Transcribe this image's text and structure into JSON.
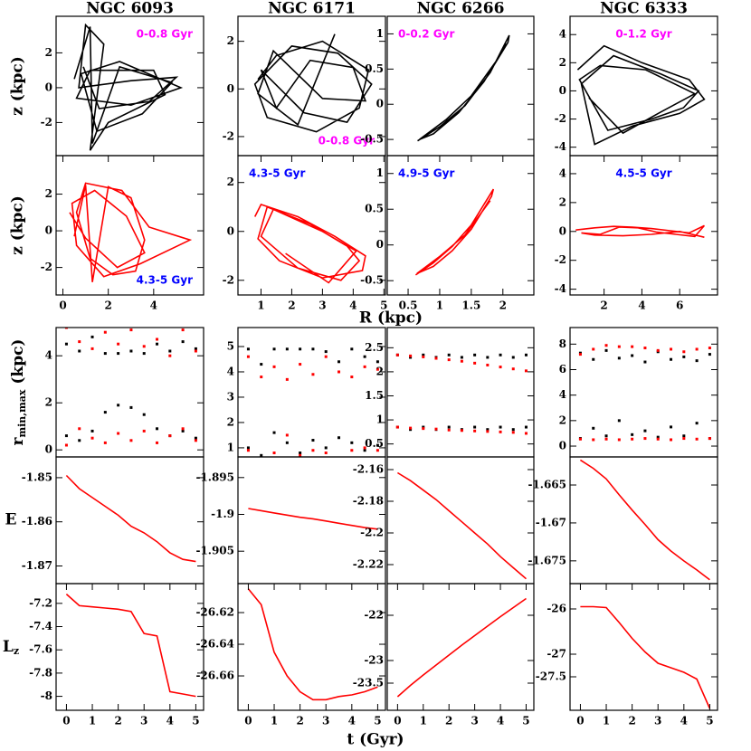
{
  "chart_data": [
    {
      "type": "line",
      "title": "NGC 6093",
      "x": [
        0.5,
        1.2,
        1.3,
        2.5,
        4.8,
        3.5,
        1.5,
        0.8,
        2.5,
        5.2,
        3.0,
        0.6,
        1.2,
        4.0,
        4.5,
        2.0,
        1.2,
        1.8,
        1.0,
        0.7,
        3.0,
        5.0,
        3.8,
        1.6,
        0.9
      ],
      "values": [
        0.5,
        3.5,
        -3.2,
        1.2,
        0.3,
        -1.5,
        -2.5,
        0.8,
        1.5,
        0.0,
        -1.0,
        -0.6,
        1.0,
        1.0,
        -0.4,
        -2.0,
        -3.6,
        2.5,
        3.6,
        0.0,
        0.4,
        0.6,
        -0.8,
        -1.2,
        1.2
      ],
      "color": "#000000",
      "xlim": [
        -0.3,
        6.2
      ],
      "ylim": [
        -3.9,
        4.1
      ],
      "yticks": [
        -2,
        0,
        2
      ],
      "annotation": {
        "text": "0-0.8 Gyr",
        "color": "#ff00ff",
        "loc": "upper right"
      }
    },
    {
      "type": "line",
      "title": "NGC 6171",
      "x": [
        0.9,
        1.5,
        3.0,
        4.5,
        4.2,
        2.8,
        1.2,
        0.8,
        2.0,
        3.5,
        4.6,
        3.8,
        2.4,
        1.0,
        1.5,
        2.6,
        4.0,
        4.4,
        3.0,
        1.4,
        0.9,
        2.2,
        3.4
      ],
      "values": [
        0.4,
        1.4,
        2.0,
        0.8,
        -0.8,
        -1.8,
        -1.2,
        0.2,
        1.8,
        1.5,
        0.2,
        -1.4,
        -1.0,
        0.8,
        -0.8,
        1.2,
        0.9,
        -0.5,
        -0.4,
        1.6,
        -0.2,
        -1.5,
        2.3
      ],
      "color": "#000000",
      "xlim": [
        0.25,
        5.05
      ],
      "ylim": [
        -2.8,
        3.05
      ],
      "yticks": [
        -2,
        0,
        2
      ],
      "annotation": {
        "text": "0-0.8 Gyr",
        "color": "#ff00ff",
        "loc": "lower right"
      }
    },
    {
      "type": "line",
      "title": "NGC 6266",
      "x": [
        0.65,
        1.0,
        1.4,
        1.8,
        2.1,
        2.08,
        1.7,
        1.3,
        0.9,
        0.68,
        1.1,
        1.5,
        1.9,
        2.05
      ],
      "values": [
        -0.52,
        -0.32,
        -0.02,
        0.45,
        0.98,
        0.88,
        0.32,
        -0.12,
        -0.42,
        -0.5,
        -0.22,
        0.12,
        0.62,
        0.86
      ],
      "color": "#000000",
      "xlim": [
        0.17,
        2.49
      ],
      "ylim": [
        -0.73,
        1.25
      ],
      "yticks": [
        -0.5,
        0,
        0.5,
        1
      ],
      "annotation": {
        "text": "0-0.2 Gyr",
        "color": "#ff00ff",
        "loc": "upper left"
      }
    },
    {
      "type": "line",
      "title": "NGC 6333",
      "x": [
        0.6,
        2.0,
        4.0,
        6.5,
        7.3,
        6.0,
        3.5,
        1.5,
        0.8,
        2.5,
        5.0,
        7.0,
        6.2,
        4.5,
        2.2,
        0.7,
        1.8,
        4.2,
        6.8,
        5.0,
        3.0,
        1.2
      ],
      "values": [
        1.5,
        3.2,
        2.0,
        0.8,
        -0.6,
        -1.6,
        -2.5,
        -3.8,
        0.5,
        2.5,
        1.2,
        0.0,
        -1.2,
        -2.0,
        -2.8,
        0.8,
        1.8,
        1.5,
        -0.2,
        -1.5,
        -3.0,
        -0.5
      ],
      "color": "#000000",
      "xlim": [
        0.2,
        8.0
      ],
      "ylim": [
        -4.6,
        5.3
      ],
      "yticks": [
        -4,
        -2,
        0,
        2,
        4
      ],
      "annotation": {
        "text": "0-1.2 Gyr",
        "color": "#ff00ff",
        "loc": "upper center"
      }
    },
    {
      "type": "line",
      "x": [
        0.5,
        1.0,
        1.3,
        2.0,
        3.0,
        3.6,
        3.2,
        2.2,
        1.2,
        0.6,
        1.0,
        2.6,
        3.8,
        5.6,
        3.4,
        1.8,
        0.6,
        0.4,
        1.4,
        2.8,
        3.6,
        2.4,
        1.0,
        0.3
      ],
      "values": [
        -0.3,
        2.5,
        -2.8,
        2.4,
        1.8,
        -0.5,
        -2.2,
        -2.4,
        -1.5,
        1.0,
        2.6,
        2.2,
        0.2,
        -0.5,
        -1.8,
        -2.5,
        -0.8,
        1.5,
        2.2,
        0.8,
        -1.2,
        -2.0,
        -0.4,
        1.0
      ],
      "color": "#ff0000",
      "xlim": [
        -0.3,
        6.2
      ],
      "ylim": [
        -3.5,
        4.1
      ],
      "xticks": [
        0,
        2,
        4
      ],
      "yticks": [
        -2,
        0,
        2
      ],
      "annotation": {
        "text": "4.3-5 Gyr",
        "color": "#0000ff",
        "loc": "lower right"
      }
    },
    {
      "type": "line",
      "x": [
        0.8,
        1.0,
        2.2,
        3.4,
        4.4,
        4.3,
        3.0,
        1.6,
        0.9,
        1.2,
        2.6,
        3.8,
        4.2,
        3.6,
        2.2,
        1.0,
        1.4,
        3.0,
        4.1,
        3.2,
        1.8
      ],
      "values": [
        0.6,
        1.1,
        0.6,
        -0.2,
        -1.0,
        -1.6,
        -1.9,
        -1.2,
        -0.3,
        1.0,
        0.3,
        -0.6,
        -1.2,
        -2.0,
        -1.5,
        -0.2,
        0.9,
        0.0,
        -0.8,
        -2.1,
        -0.9
      ],
      "color": "#ff0000",
      "xlim": [
        0.25,
        5.05
      ],
      "ylim": [
        -2.6,
        3.1
      ],
      "xticks": [
        1,
        2,
        3,
        4,
        5
      ],
      "yticks": [
        -2,
        0,
        2
      ],
      "annotation": {
        "text": "4.3-5 Gyr",
        "color": "#0000ff",
        "loc": "upper left"
      }
    },
    {
      "type": "line",
      "x": [
        0.62,
        0.9,
        1.2,
        1.5,
        1.85,
        1.82,
        1.5,
        1.2,
        0.9,
        0.64,
        1.0,
        1.4,
        1.8
      ],
      "values": [
        -0.42,
        -0.25,
        -0.02,
        0.28,
        0.78,
        0.68,
        0.22,
        -0.08,
        -0.3,
        -0.4,
        -0.16,
        0.14,
        0.62
      ],
      "color": "#ff0000",
      "xlim": [
        0.17,
        2.49
      ],
      "ylim": [
        -0.7,
        1.25
      ],
      "xticks": [
        0.5,
        1,
        1.5,
        2
      ],
      "yticks": [
        -0.5,
        0,
        0.5,
        1
      ],
      "annotation": {
        "text": "4.9-5 Gyr",
        "color": "#0000ff",
        "loc": "upper left"
      }
    },
    {
      "type": "line",
      "x": [
        0.5,
        1.5,
        2.5,
        3.5,
        4.5,
        5.5,
        6.5,
        7.3,
        6.8,
        5.8,
        4.8,
        3.8,
        2.8,
        1.8,
        0.8,
        1.5,
        3.0,
        4.5,
        6.0,
        7.3
      ],
      "values": [
        0.1,
        0.25,
        0.35,
        0.3,
        0.2,
        0.05,
        -0.1,
        0.4,
        -0.35,
        -0.2,
        -0.05,
        0.25,
        0.3,
        -0.2,
        -0.1,
        -0.25,
        -0.3,
        -0.2,
        0.0,
        -0.4
      ],
      "color": "#ff0000",
      "xlim": [
        0.2,
        8.0
      ],
      "ylim": [
        -4.4,
        5.25
      ],
      "xticks": [
        2,
        4,
        6
      ],
      "yticks": [
        -4,
        -2,
        0,
        2,
        4
      ],
      "annotation": {
        "text": "4.5-5 Gyr",
        "color": "#0000ff",
        "loc": "upper center"
      }
    },
    {
      "type": "scatter",
      "x": [
        0,
        0.5,
        1,
        1.5,
        2,
        2.5,
        3,
        3.5,
        4,
        4.5,
        5
      ],
      "xlim": [
        -0.4,
        5.3
      ],
      "ylim": [
        -0.3,
        5.2
      ],
      "yticks": [
        0,
        2,
        4
      ],
      "series": [
        {
          "color": "#000000",
          "values": [
            4.5,
            4.2,
            4.8,
            4.1,
            4.1,
            4.2,
            4.1,
            4.5,
            4.2,
            4.6,
            4.3
          ]
        },
        {
          "color": "#000000",
          "values": [
            0.6,
            0.4,
            0.8,
            1.6,
            1.9,
            1.8,
            1.5,
            0.9,
            0.6,
            0.8,
            0.5
          ]
        },
        {
          "color": "#ff0000",
          "values": [
            5.2,
            4.6,
            4.3,
            5.0,
            4.5,
            5.1,
            4.4,
            4.7,
            4.0,
            5.1,
            4.2
          ]
        },
        {
          "color": "#ff0000",
          "values": [
            0.2,
            0.9,
            0.5,
            0.3,
            0.7,
            0.4,
            0.8,
            0.3,
            0.6,
            0.9,
            0.4
          ]
        }
      ]
    },
    {
      "type": "scatter",
      "x": [
        0,
        0.5,
        1,
        1.5,
        2,
        2.5,
        3,
        3.5,
        4,
        4.5,
        5
      ],
      "xlim": [
        -0.4,
        5.3
      ],
      "ylim": [
        0.64,
        5.75
      ],
      "yticks": [
        1,
        2,
        3,
        4,
        5
      ],
      "series": [
        {
          "color": "#000000",
          "values": [
            4.9,
            4.3,
            4.9,
            4.9,
            4.9,
            4.9,
            4.8,
            4.4,
            4.9,
            4.6,
            4.4
          ]
        },
        {
          "color": "#000000",
          "values": [
            1.0,
            0.7,
            1.6,
            1.2,
            0.8,
            1.3,
            1.0,
            1.4,
            1.2,
            0.9,
            1.1
          ]
        },
        {
          "color": "#ff0000",
          "values": [
            4.6,
            3.8,
            4.2,
            3.7,
            4.3,
            3.9,
            4.6,
            4.0,
            3.8,
            4.2,
            4.1
          ]
        },
        {
          "color": "#ff0000",
          "values": [
            0.9,
            0.6,
            0.8,
            1.5,
            0.7,
            0.9,
            0.8,
            0.6,
            0.9,
            1.0,
            0.9
          ]
        }
      ]
    },
    {
      "type": "scatter",
      "x": [
        0,
        0.5,
        1,
        1.5,
        2,
        2.5,
        3,
        3.5,
        4,
        4.5,
        5
      ],
      "xlim": [
        -0.4,
        5.3
      ],
      "ylim": [
        0.23,
        2.92
      ],
      "yticks": [
        0.5,
        1,
        1.5,
        2,
        2.5
      ],
      "series": [
        {
          "color": "#000000",
          "values": [
            2.35,
            2.3,
            2.35,
            2.3,
            2.35,
            2.3,
            2.35,
            2.3,
            2.35,
            2.3,
            2.35
          ]
        },
        {
          "color": "#000000",
          "values": [
            0.85,
            0.8,
            0.85,
            0.8,
            0.85,
            0.8,
            0.85,
            0.8,
            0.85,
            0.8,
            0.85
          ]
        },
        {
          "color": "#ff0000",
          "values": [
            2.35,
            2.33,
            2.31,
            2.28,
            2.25,
            2.22,
            2.18,
            2.14,
            2.1,
            2.06,
            2.02
          ]
        },
        {
          "color": "#ff0000",
          "values": [
            0.85,
            0.83,
            0.82,
            0.81,
            0.79,
            0.78,
            0.77,
            0.76,
            0.75,
            0.74,
            0.72
          ]
        }
      ]
    },
    {
      "type": "scatter",
      "x": [
        0,
        0.5,
        1,
        1.5,
        2,
        2.5,
        3,
        3.5,
        4,
        4.5,
        5
      ],
      "xlim": [
        -0.4,
        5.3
      ],
      "ylim": [
        -0.85,
        9.3
      ],
      "yticks": [
        0,
        2,
        4,
        6,
        8
      ],
      "series": [
        {
          "color": "#000000",
          "values": [
            7.3,
            6.8,
            7.5,
            6.9,
            7.1,
            6.6,
            7.4,
            6.8,
            7.0,
            6.7,
            7.2
          ]
        },
        {
          "color": "#000000",
          "values": [
            0.6,
            1.4,
            0.8,
            2.0,
            0.9,
            1.2,
            0.7,
            1.5,
            0.8,
            1.8,
            0.6
          ]
        },
        {
          "color": "#ff0000",
          "values": [
            7.2,
            7.6,
            7.9,
            7.8,
            7.8,
            7.7,
            7.5,
            7.6,
            7.4,
            7.6,
            7.7
          ]
        },
        {
          "color": "#ff0000",
          "values": [
            0.55,
            0.5,
            0.55,
            0.5,
            0.55,
            0.6,
            0.55,
            0.5,
            0.6,
            0.55,
            0.6
          ]
        }
      ]
    },
    {
      "type": "line",
      "x": [
        0,
        0.5,
        1,
        1.5,
        2,
        2.5,
        3,
        3.5,
        4,
        4.5,
        5
      ],
      "values": [
        -1.8495,
        -1.8525,
        -1.8545,
        -1.8565,
        -1.8585,
        -1.861,
        -1.8625,
        -1.8645,
        -1.867,
        -1.8685,
        -1.869
      ],
      "color": "#ff0000",
      "xlim": [
        -0.4,
        5.3
      ],
      "ylim": [
        -1.874,
        -1.8453
      ],
      "yticks": [
        -1.85,
        -1.86,
        -1.87
      ]
    },
    {
      "type": "line",
      "x": [
        0,
        0.5,
        1,
        1.5,
        2,
        2.5,
        3,
        3.5,
        4,
        4.5,
        5
      ],
      "values": [
        -1.8992,
        -1.8995,
        -1.8998,
        -1.9001,
        -1.9004,
        -1.9006,
        -1.9009,
        -1.9012,
        -1.9015,
        -1.9018,
        -1.902
      ],
      "color": "#ff0000",
      "xlim": [
        -0.4,
        5.3
      ],
      "ylim": [
        -1.9094,
        -1.8922
      ],
      "yticks": [
        -1.895,
        -1.9,
        -1.905
      ]
    },
    {
      "type": "line",
      "x": [
        0,
        0.5,
        1,
        1.5,
        2,
        2.5,
        3,
        3.5,
        4,
        4.5,
        5
      ],
      "values": [
        -2.162,
        -2.167,
        -2.173,
        -2.179,
        -2.186,
        -2.193,
        -2.2,
        -2.207,
        -2.215,
        -2.222,
        -2.229
      ],
      "color": "#ff0000",
      "xlim": [
        -0.4,
        5.3
      ],
      "ylim": [
        -2.232,
        -2.152
      ],
      "yticks": [
        -2.16,
        -2.18,
        -2.2,
        -2.22
      ]
    },
    {
      "type": "line",
      "x": [
        0,
        0.5,
        1,
        1.5,
        2,
        2.5,
        3,
        3.5,
        4,
        4.5,
        5
      ],
      "values": [
        -1.6617,
        -1.6628,
        -1.6642,
        -1.6663,
        -1.6683,
        -1.6702,
        -1.6722,
        -1.6737,
        -1.675,
        -1.6762,
        -1.6775
      ],
      "color": "#ff0000",
      "xlim": [
        -0.4,
        5.3
      ],
      "ylim": [
        -1.678,
        -1.6613
      ],
      "yticks": [
        -1.665,
        -1.67,
        -1.675
      ]
    },
    {
      "type": "line",
      "x": [
        0,
        0.5,
        1,
        1.5,
        2,
        2.5,
        3,
        3.5,
        4,
        4.5,
        5
      ],
      "values": [
        -7.12,
        -7.22,
        -7.23,
        -7.24,
        -7.25,
        -7.27,
        -7.46,
        -7.48,
        -7.96,
        -7.98,
        -8.0
      ],
      "color": "#ff0000",
      "xlim": [
        -0.4,
        5.3
      ],
      "ylim": [
        -8.12,
        -7.03
      ],
      "xticks": [
        0,
        1,
        2,
        3,
        4,
        5
      ],
      "yticks": [
        -7.2,
        -7.4,
        -7.6,
        -7.8,
        -8
      ]
    },
    {
      "type": "line",
      "x": [
        0,
        0.5,
        1,
        1.5,
        2,
        2.5,
        3,
        3.5,
        4,
        4.5,
        5
      ],
      "values": [
        -26.605,
        -26.615,
        -26.645,
        -26.66,
        -26.67,
        -26.675,
        -26.675,
        -26.673,
        -26.672,
        -26.67,
        -26.667
      ],
      "color": "#ff0000",
      "xlim": [
        -0.4,
        5.3
      ],
      "ylim": [
        -26.6817,
        -26.6017
      ],
      "xticks": [
        0,
        1,
        2,
        3,
        4,
        5
      ],
      "yticks": [
        -26.62,
        -26.64,
        -26.66
      ]
    },
    {
      "type": "line",
      "x": [
        0,
        0.5,
        1,
        1.5,
        2,
        2.5,
        3,
        3.5,
        4,
        4.5,
        5
      ],
      "values": [
        -23.8,
        -23.55,
        -23.32,
        -23.1,
        -22.88,
        -22.66,
        -22.45,
        -22.24,
        -22.03,
        -21.83,
        -21.63
      ],
      "color": "#ff0000",
      "xlim": [
        -0.4,
        5.3
      ],
      "ylim": [
        -24.1,
        -21.3
      ],
      "xticks": [
        0,
        1,
        2,
        3,
        4,
        5
      ],
      "yticks": [
        -22,
        -23,
        -23.5
      ]
    },
    {
      "type": "line",
      "x": [
        0,
        0.5,
        1,
        1.5,
        2,
        2.5,
        3,
        3.5,
        4,
        4.5,
        5
      ],
      "values": [
        -25.95,
        -25.95,
        -25.97,
        -26.3,
        -26.65,
        -26.95,
        -27.2,
        -27.3,
        -27.4,
        -27.55,
        -28.2
      ],
      "color": "#ff0000",
      "xlim": [
        -0.4,
        5.3
      ],
      "ylim": [
        -28.24,
        -25.44
      ],
      "xticks": [
        0,
        1,
        2,
        3,
        4,
        5
      ],
      "yticks": [
        -26,
        -27,
        -27.5
      ]
    }
  ],
  "figure": {
    "ylabels": [
      "z (kpc)",
      "z (kpc)",
      {
        "main": "r",
        "sub": "min,max",
        "rest": " (kpc)"
      },
      "E",
      {
        "main": "L",
        "sub": "z"
      }
    ],
    "xlabel_orbit": "R (kpc)",
    "xlabel_time": "t (Gyr)"
  }
}
